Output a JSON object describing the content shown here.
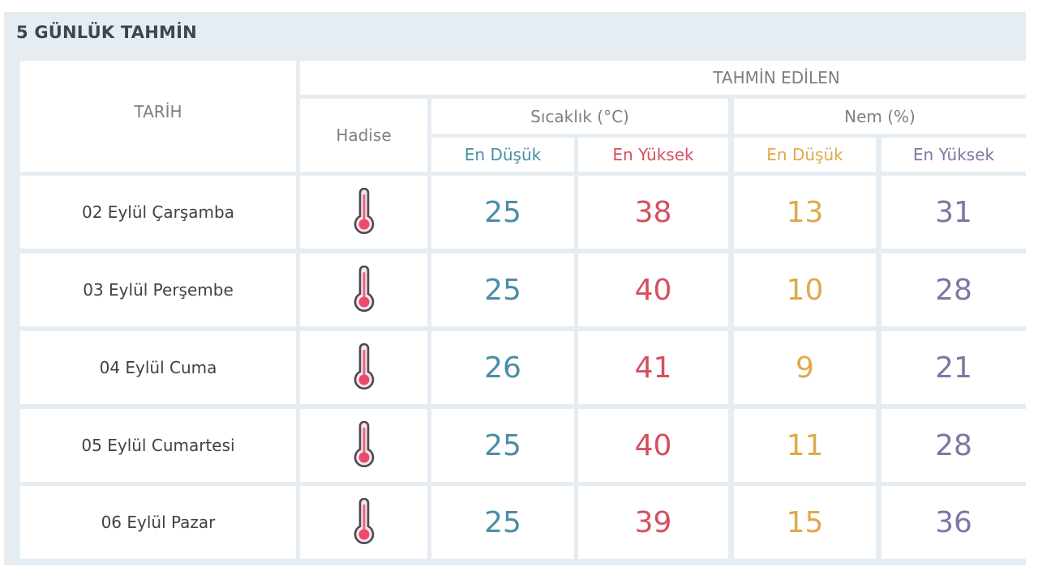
{
  "title": "5 GÜNLÜK TAHMİN",
  "headers": {
    "date": "TARİH",
    "event": "Hadise",
    "forecast": "TAHMİN EDİLEN",
    "temperature": "Sıcaklık (°C)",
    "humidity": "Nem (%)",
    "temp_low": "En Düşük",
    "temp_high": "En Yüksek",
    "hum_low": "En Düşük",
    "hum_high": "En Yüksek"
  },
  "colors": {
    "temp_low": "#4a8ea6",
    "temp_high": "#d3505f",
    "hum_low": "#e0a94a",
    "hum_high": "#7c77a3",
    "panel_bg": "#e6edf2"
  },
  "rows": [
    {
      "date": "02 Eylül Çarşamba",
      "icon": "thermometer-icon",
      "temp_low": "25",
      "temp_high": "38",
      "hum_low": "13",
      "hum_high": "31"
    },
    {
      "date": "03 Eylül Perşembe",
      "icon": "thermometer-icon",
      "temp_low": "25",
      "temp_high": "40",
      "hum_low": "10",
      "hum_high": "28"
    },
    {
      "date": "04 Eylül Cuma",
      "icon": "thermometer-icon",
      "temp_low": "26",
      "temp_high": "41",
      "hum_low": "9",
      "hum_high": "21"
    },
    {
      "date": "05 Eylül Cumartesi",
      "icon": "thermometer-icon",
      "temp_low": "25",
      "temp_high": "40",
      "hum_low": "11",
      "hum_high": "28"
    },
    {
      "date": "06 Eylül Pazar",
      "icon": "thermometer-icon",
      "temp_low": "25",
      "temp_high": "39",
      "hum_low": "15",
      "hum_high": "36"
    }
  ]
}
